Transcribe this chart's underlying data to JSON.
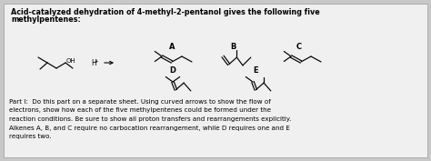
{
  "title_line1": "Acid-catalyzed dehydration of 4-methyl-2-pentanol gives the following five",
  "title_line2": "methylpentenes:",
  "background_color": "#c8c8c8",
  "box_color": "#f0f0f0",
  "text_color": "#000000",
  "part_text_lines": [
    "Part I:  Do this part on a separate sheet. Using curved arrows to show the flow of",
    "electrons, show how each of the five methylpentenes could be formed under the",
    "reaction conditions. Be sure to show all proton transfers and rearrangements explicitly.",
    "Alkenes A, B, and C require no carbocation rearrangement, while D requires one and E",
    "requires two."
  ],
  "figsize": [
    4.74,
    1.77
  ],
  "dpi": 100
}
